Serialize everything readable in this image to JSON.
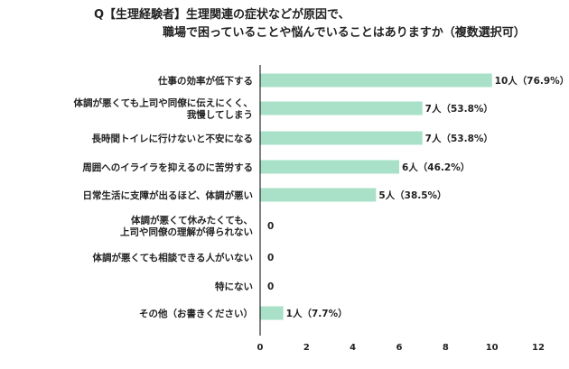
{
  "title": {
    "line1": "Q【生理経験者】生理関連の症状などが原因で、",
    "line2": "職場で困っていることや悩んでいることはありますか（複数選択可）"
  },
  "colors": {
    "bar": "#a8e0c8",
    "axis": "#000000",
    "text": "#222222"
  },
  "chart_data": {
    "type": "bar",
    "orientation": "horizontal",
    "title": "Q【生理経験者】生理関連の症状などが原因で、職場で困っていることや悩んでいることはありますか（複数選択可）",
    "categories": [
      [
        "仕事の効率が低下する"
      ],
      [
        "体調が悪くても上司や同僚に伝えにくく、",
        "我慢してしまう"
      ],
      [
        "長時間トイレに行けないと不安になる"
      ],
      [
        "周囲へのイライラを抑えるのに苦労する"
      ],
      [
        "日常生活に支障が出るほど、体調が悪い"
      ],
      [
        "体調が悪くて休みたくても、",
        "上司や同僚の理解が得られない"
      ],
      [
        "体調が悪くても相談できる人がいない"
      ],
      [
        "特にない"
      ],
      [
        "その他（お書きください）"
      ]
    ],
    "values": [
      10,
      7,
      7,
      6,
      5,
      0,
      0,
      0,
      1
    ],
    "data_labels": [
      "10人（76.9%）",
      "7人（53.8%）",
      "7人（53.8%）",
      "6人（46.2%）",
      "5人（38.5%）",
      "0",
      "0",
      "0",
      "1人（7.7%）"
    ],
    "xlim": [
      0,
      12
    ],
    "xticks": [
      0,
      2,
      4,
      6,
      8,
      10,
      12
    ],
    "xlabel": "",
    "ylabel": "",
    "grid": false,
    "legend": "none"
  }
}
